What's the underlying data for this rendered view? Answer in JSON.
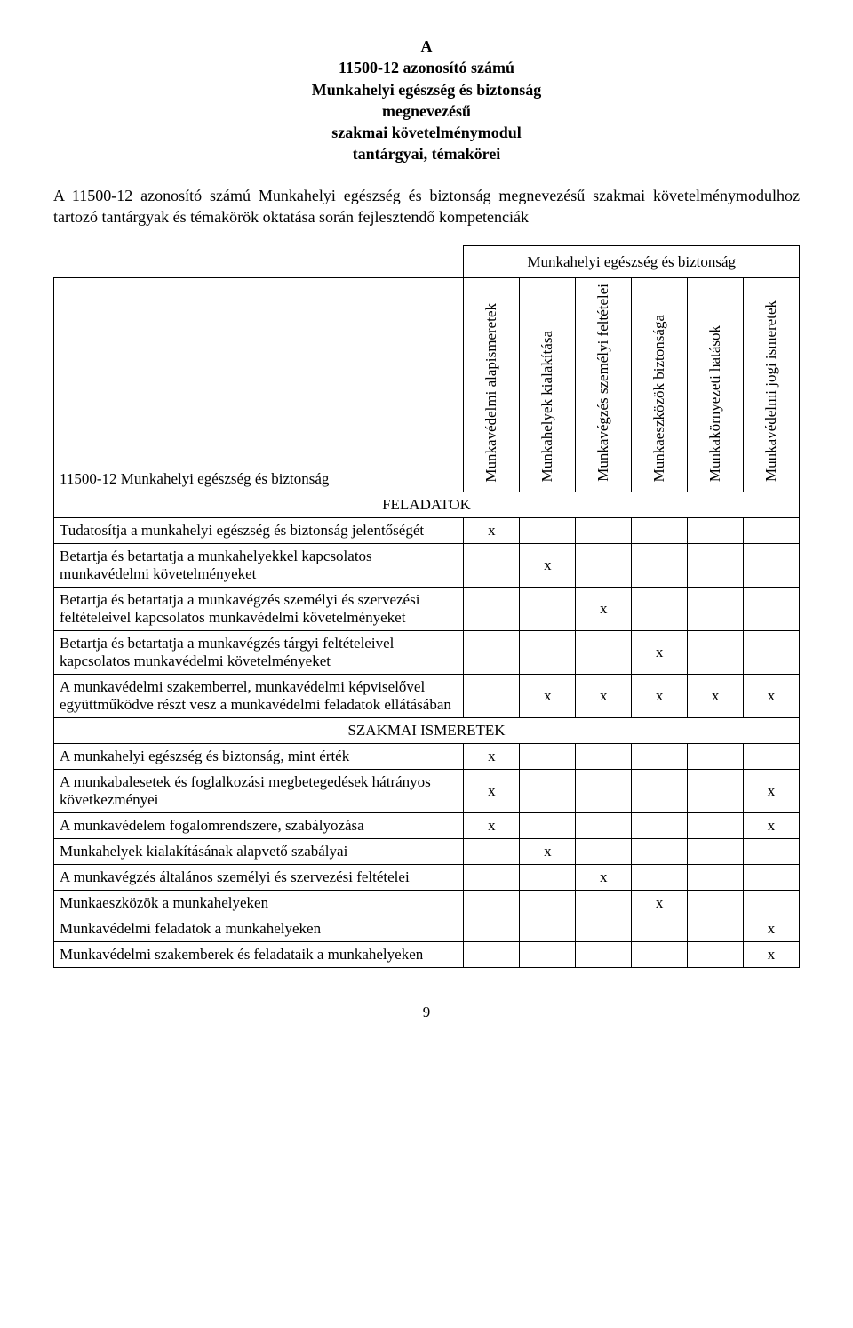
{
  "title": {
    "line1": "A",
    "line2": "11500-12 azonosító számú",
    "line3": "Munkahelyi egészség és biztonság",
    "line4": "megnevezésű",
    "line5": "szakmai követelménymodul",
    "line6": "tantárgyai, témakörei"
  },
  "intro": "A 11500-12 azonosító számú Munkahelyi egészség és biztonság megnevezésű szakmai követelménymodulhoz tartozó tantárgyak és témakörök oktatása során fejlesztendő kompetenciák",
  "table": {
    "main_header": "Munkahelyi egészség és biztonság",
    "category_label": "11500-12 Munkahelyi egészség és biztonság",
    "columns": [
      "Munkavédelmi alapismeretek",
      "Munkahelyek kialakítása",
      "Munkavégzés személyi feltételei",
      "Munkaeszközök biztonsága",
      "Munkakörnyezeti hatások",
      "Munkavédelmi jogi ismeretek"
    ],
    "sections": [
      {
        "heading": "FELADATOK",
        "rows": [
          {
            "label": "Tudatosítja a munkahelyi egészség és biztonság jelentőségét",
            "checks": [
              "x",
              "",
              "",
              "",
              "",
              ""
            ]
          },
          {
            "label": "Betartja és betartatja a munkahelyekkel kapcsolatos munkavédelmi követelményeket",
            "checks": [
              "",
              "x",
              "",
              "",
              "",
              ""
            ]
          },
          {
            "label": "Betartja és betartatja a munkavégzés személyi és szervezési feltételeivel kapcsolatos munkavédelmi követelményeket",
            "checks": [
              "",
              "",
              "x",
              "",
              "",
              ""
            ]
          },
          {
            "label": "Betartja és betartatja a munkavégzés tárgyi feltételeivel kapcsolatos munkavédelmi követelményeket",
            "checks": [
              "",
              "",
              "",
              "x",
              "",
              ""
            ]
          },
          {
            "label": "A munkavédelmi szakemberrel, munkavédelmi képviselővel együttműködve részt vesz a munkavédelmi feladatok ellátásában",
            "checks": [
              "",
              "x",
              "x",
              "x",
              "x",
              "x"
            ]
          }
        ]
      },
      {
        "heading": "SZAKMAI ISMERETEK",
        "rows": [
          {
            "label": "A munkahelyi egészség és biztonság, mint érték",
            "checks": [
              "x",
              "",
              "",
              "",
              "",
              ""
            ]
          },
          {
            "label": "A munkabalesetek és foglalkozási megbetegedések hátrányos következményei",
            "checks": [
              "x",
              "",
              "",
              "",
              "",
              "x"
            ]
          },
          {
            "label": "A munkavédelem fogalomrendszere, szabályozása",
            "checks": [
              "x",
              "",
              "",
              "",
              "",
              "x"
            ]
          },
          {
            "label": "Munkahelyek kialakításának alapvető szabályai",
            "checks": [
              "",
              "x",
              "",
              "",
              "",
              ""
            ]
          },
          {
            "label": "A munkavégzés általános személyi és szervezési feltételei",
            "checks": [
              "",
              "",
              "x",
              "",
              "",
              ""
            ]
          },
          {
            "label": "Munkaeszközök a munkahelyeken",
            "checks": [
              "",
              "",
              "",
              "x",
              "",
              ""
            ]
          },
          {
            "label": "Munkavédelmi feladatok a munkahelyeken",
            "checks": [
              "",
              "",
              "",
              "",
              "",
              "x"
            ]
          },
          {
            "label": "Munkavédelmi szakemberek és feladataik a munkahelyeken",
            "checks": [
              "",
              "",
              "",
              "",
              "",
              "x"
            ]
          }
        ]
      }
    ]
  },
  "page_number": "9"
}
